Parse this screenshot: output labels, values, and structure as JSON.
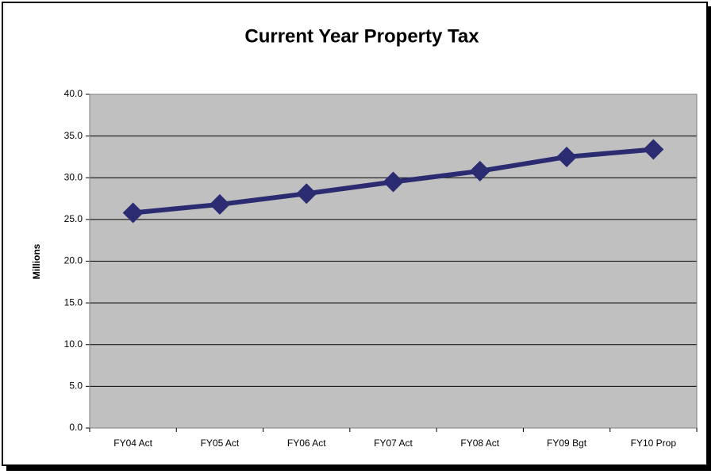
{
  "chart_data": {
    "type": "line",
    "title": "Current Year Property Tax",
    "y_label": "Millions",
    "categories": [
      "FY04 Act",
      "FY05 Act",
      "FY06 Act",
      "FY07 Act",
      "FY08 Act",
      "FY09 Bgt",
      "FY10 Prop"
    ],
    "series": [
      {
        "name": "Current Year Property Tax",
        "color": "#2b2b72",
        "values": [
          25.8,
          26.8,
          28.1,
          29.5,
          30.8,
          32.5,
          33.4
        ]
      }
    ],
    "ylim": [
      0,
      40
    ],
    "yticks": [
      {
        "value": 0,
        "label": "0.0"
      },
      {
        "value": 5,
        "label": "5.0"
      },
      {
        "value": 10,
        "label": "10.0"
      },
      {
        "value": 15,
        "label": "15.0"
      },
      {
        "value": 20,
        "label": "20.0"
      },
      {
        "value": 25,
        "label": "25.0"
      },
      {
        "value": 30,
        "label": "30.0"
      },
      {
        "value": 35,
        "label": "35.0"
      },
      {
        "value": 40,
        "label": "40.0"
      }
    ],
    "grid": true,
    "plot_background": "#c0c0c0"
  }
}
